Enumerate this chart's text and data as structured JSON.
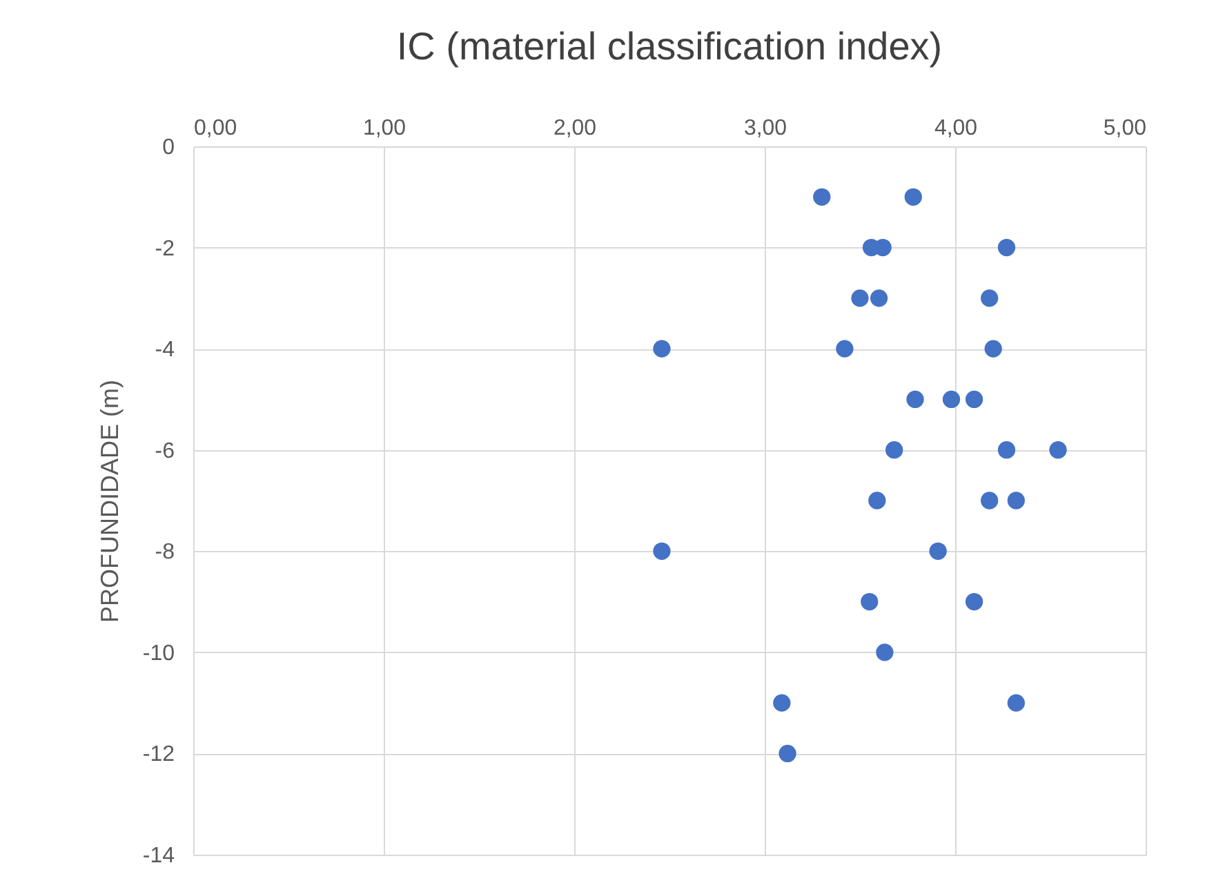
{
  "chart_data": {
    "type": "scatter",
    "title": "IC (material classification index)",
    "ylabel": "PROFUNDIDADE (m)",
    "x": [
      3.3,
      3.78,
      3.56,
      3.62,
      4.27,
      3.5,
      3.6,
      4.18,
      2.46,
      3.42,
      4.2,
      3.79,
      3.98,
      4.1,
      3.68,
      4.27,
      4.54,
      3.59,
      4.18,
      4.32,
      2.46,
      3.91,
      3.55,
      4.1,
      3.63,
      3.09,
      4.32,
      3.12
    ],
    "values": [
      -1,
      -1,
      -2,
      -2,
      -2,
      -3,
      -3,
      -3,
      -4,
      -4,
      -4,
      -5,
      -5,
      -5,
      -6,
      -6,
      -6,
      -7,
      -7,
      -7,
      -8,
      -8,
      -9,
      -9,
      -10,
      -11,
      -11,
      -12
    ],
    "color": "#4472c4",
    "marker": "circle",
    "grid": true,
    "xlim": [
      0,
      5
    ],
    "xticks": [
      {
        "value": 0,
        "label": "0,00"
      },
      {
        "value": 1,
        "label": "1,00"
      },
      {
        "value": 2,
        "label": "2,00"
      },
      {
        "value": 3,
        "label": "3,00"
      },
      {
        "value": 4,
        "label": "4,00"
      },
      {
        "value": 5,
        "label": "5,00"
      }
    ],
    "ylim": [
      -14,
      0
    ],
    "yticks": [
      0,
      -2,
      -4,
      -6,
      -8,
      -10,
      -12,
      -14
    ]
  }
}
